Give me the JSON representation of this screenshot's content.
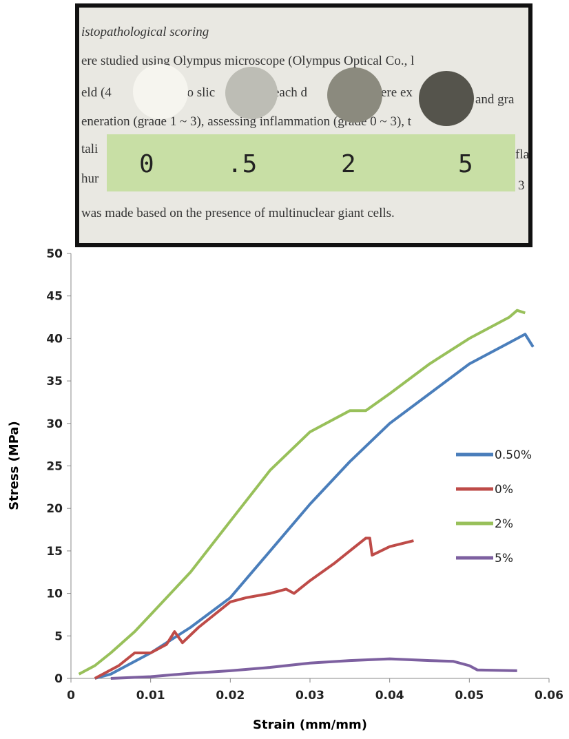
{
  "chart_data": {
    "type": "line",
    "x_label": "Strain (mm/mm)",
    "y_label": "Stress (MPa)",
    "xlim": [
      0,
      0.06
    ],
    "xticks": [
      0,
      0.01,
      0.02,
      0.03,
      0.04,
      0.05,
      0.06
    ],
    "ylim": [
      0,
      50
    ],
    "yticks": [
      0,
      5,
      10,
      15,
      20,
      25,
      30,
      35,
      40,
      45,
      50
    ],
    "grid": false,
    "legend": "right",
    "series": [
      {
        "name": "0.50%",
        "color": "#4a7ebb",
        "x": [
          0.003,
          0.005,
          0.01,
          0.015,
          0.02,
          0.025,
          0.03,
          0.035,
          0.04,
          0.045,
          0.05,
          0.055,
          0.057,
          0.058
        ],
        "values": [
          0,
          0.5,
          3,
          6,
          9.5,
          15,
          20.5,
          25.5,
          30,
          33.5,
          37,
          39.5,
          40.5,
          39
        ]
      },
      {
        "name": "0%",
        "color": "#be4b48",
        "x": [
          0.003,
          0.006,
          0.008,
          0.01,
          0.012,
          0.013,
          0.014,
          0.016,
          0.018,
          0.02,
          0.022,
          0.025,
          0.027,
          0.028,
          0.03,
          0.033,
          0.035,
          0.037,
          0.0375,
          0.0378,
          0.04,
          0.043
        ],
        "values": [
          0,
          1.5,
          3,
          3,
          4,
          5.5,
          4.2,
          6,
          7.5,
          9,
          9.5,
          10,
          10.5,
          10,
          11.5,
          13.5,
          15,
          16.5,
          16.5,
          14.5,
          15.5,
          16.2
        ]
      },
      {
        "name": "2%",
        "color": "#98c05a",
        "x": [
          0.001,
          0.003,
          0.005,
          0.008,
          0.01,
          0.015,
          0.02,
          0.025,
          0.03,
          0.035,
          0.037,
          0.04,
          0.045,
          0.05,
          0.055,
          0.056,
          0.057
        ],
        "values": [
          0.5,
          1.5,
          3,
          5.5,
          7.5,
          12.5,
          18.5,
          24.5,
          29,
          31.5,
          31.5,
          33.5,
          37,
          40,
          42.5,
          43.3,
          43
        ]
      },
      {
        "name": "5%",
        "color": "#7d60a0",
        "x": [
          0.005,
          0.01,
          0.015,
          0.02,
          0.025,
          0.03,
          0.035,
          0.04,
          0.045,
          0.048,
          0.05,
          0.051,
          0.056
        ],
        "values": [
          0,
          0.2,
          0.6,
          0.9,
          1.3,
          1.8,
          2.1,
          2.3,
          2.1,
          2.0,
          1.5,
          1.0,
          0.9
        ]
      }
    ]
  },
  "photo": {
    "heading": "istopathological scoring",
    "line1": "ere studied using Olympus microscope (Olympus Optical Co., l",
    "line2": [
      "eld (4",
      "vo slic",
      "each d",
      "ere ex",
      "and gra"
    ],
    "line3": "eneration (grade 1 ~ 3), assessing inflammation (grade 0 ~ 3), t",
    "line4": [
      "tali",
      "fla"
    ],
    "line5": [
      "hur",
      "3"
    ],
    "line6": "was made based on the presence of multinuclear giant cells.",
    "labels": [
      "0",
      ".5",
      "2",
      "5"
    ]
  }
}
